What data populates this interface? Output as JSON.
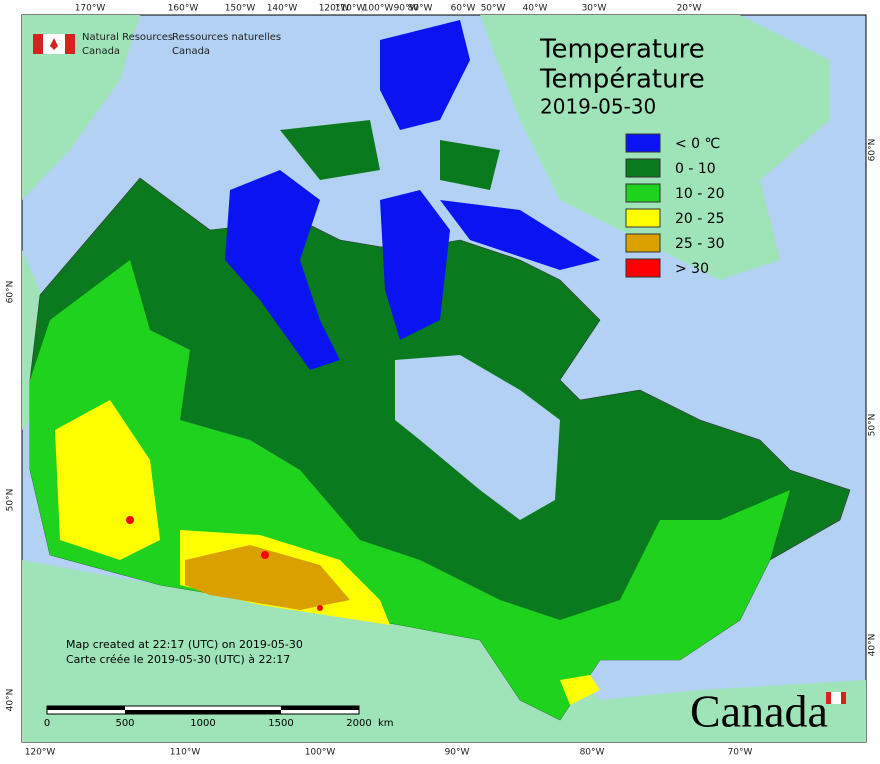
{
  "header": {
    "org_en": [
      "Natural Resources",
      "Canada"
    ],
    "org_fr": [
      "Ressources naturelles",
      "Canada"
    ]
  },
  "title": {
    "line1": "Temperature",
    "line2": "Température",
    "date": "2019-05-30"
  },
  "legend": [
    {
      "label": "< 0 ℃",
      "color": "#0a14f0"
    },
    {
      "label": "0 - 10",
      "color": "#0a7a1e"
    },
    {
      "label": "10 - 20",
      "color": "#1ed21e"
    },
    {
      "label": "20 - 25",
      "color": "#ffff00"
    },
    {
      "label": "25 - 30",
      "color": "#d9a000"
    },
    {
      "label": "> 30",
      "color": "#ff0000"
    }
  ],
  "graticule": {
    "top": [
      "170°W",
      "160°W",
      "150°W",
      "140°W",
      "120°W",
      "110°W",
      "100°W",
      "90°W",
      "80°W",
      "60°W",
      "50°W",
      "40°W",
      "30°W",
      "20°W"
    ],
    "bottom": [
      "120°W",
      "110°W",
      "100°W",
      "90°W",
      "80°W",
      "70°W"
    ],
    "left": [
      "60°N",
      "50°N",
      "40°N"
    ],
    "right": [
      "60°N",
      "50°N",
      "40°N"
    ]
  },
  "notes": [
    "Map created at 22:17 (UTC) on 2019-05-30",
    "Carte créée le 2019-05-30 (UTC) à 22:17"
  ],
  "scale": {
    "labels": [
      "0",
      "500",
      "1000",
      "1500",
      "2000"
    ],
    "unit": "km"
  },
  "wordmark": "Canada"
}
